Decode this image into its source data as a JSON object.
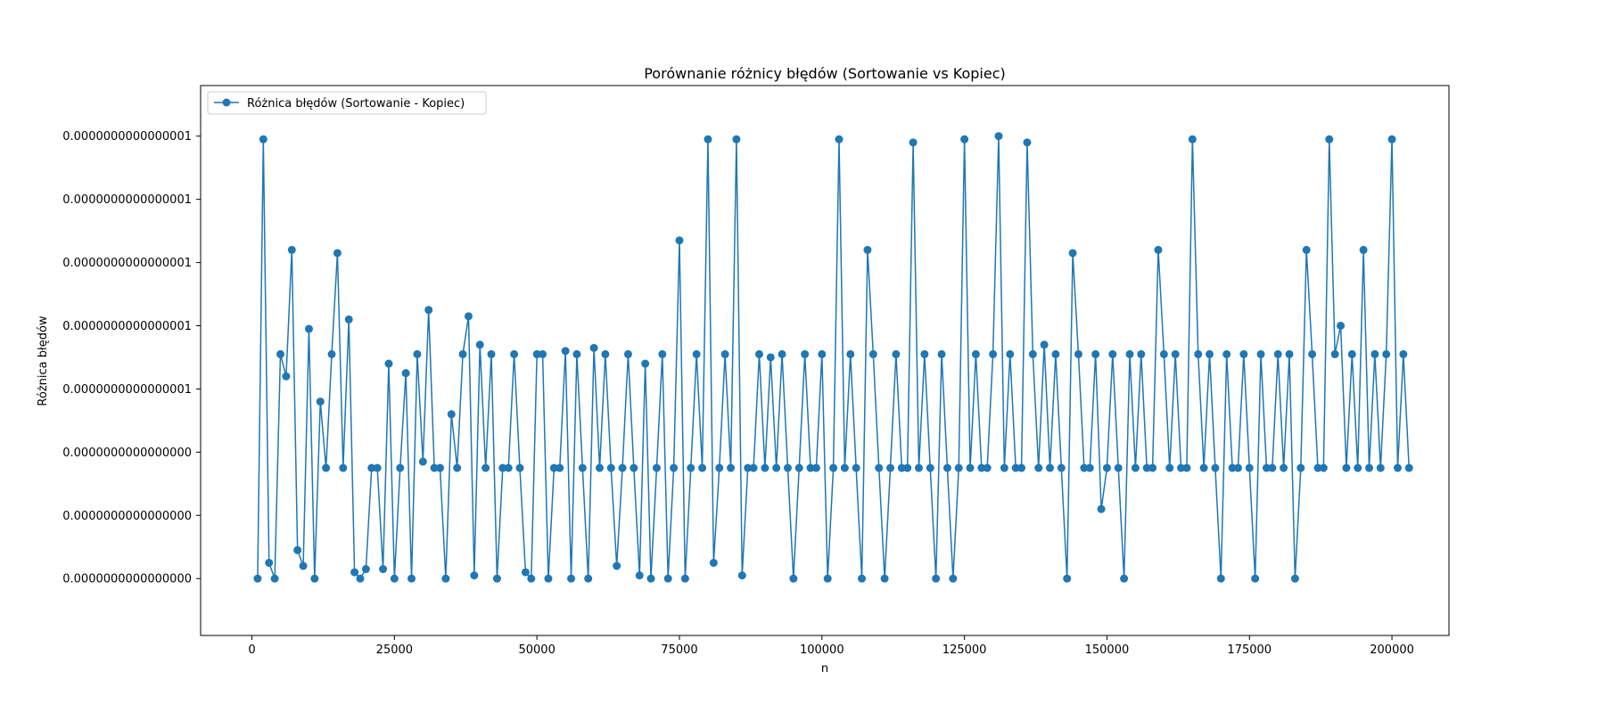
{
  "chart_data": {
    "type": "line",
    "title": "Porównanie różnicy błędów (Sortowanie vs Kopiec)",
    "xlabel": "n",
    "ylabel": "Różnica błędów",
    "xlim": [
      -9000,
      210000
    ],
    "ylim": [
      -1.8e-17,
      1.56e-16
    ],
    "x_ticks": [
      0,
      25000,
      50000,
      75000,
      100000,
      125000,
      150000,
      175000,
      200000
    ],
    "x_tick_labels": [
      "0",
      "25000",
      "50000",
      "75000",
      "100000",
      "125000",
      "150000",
      "175000",
      "200000"
    ],
    "y_ticks": [
      0,
      2e-17,
      4e-17,
      6e-17,
      8e-17,
      1e-16,
      1.2e-16,
      1.4e-16
    ],
    "y_tick_labels": [
      "0.0000000000000000",
      "0.0000000000000000",
      "0.0000000000000000",
      "0.0000000000000001",
      "0.0000000000000001",
      "0.0000000000000001",
      "0.0000000000000001",
      "0.0000000000000001"
    ],
    "grid": false,
    "legend_position": "top-left",
    "color": "#1f77b4",
    "series": [
      {
        "name": "Różnica błędów (Sortowanie - Kopiec)",
        "marker": "circle",
        "x_start": 1000,
        "x_step": 1000,
        "values": [
          0,
          1.39e-16,
          5e-18,
          0,
          7.1e-17,
          6.4e-17,
          1.04e-16,
          9e-18,
          4e-18,
          7.9e-17,
          0,
          5.6e-17,
          3.5e-17,
          7.1e-17,
          1.03e-16,
          3.5e-17,
          8.2e-17,
          2e-18,
          0,
          3e-18,
          3.5e-17,
          3.5e-17,
          3e-18,
          6.8e-17,
          0,
          3.5e-17,
          6.5e-17,
          0,
          7.1e-17,
          3.7e-17,
          8.5e-17,
          3.5e-17,
          3.5e-17,
          0,
          5.2e-17,
          3.5e-17,
          7.1e-17,
          8.3e-17,
          1e-18,
          7.4e-17,
          3.5e-17,
          7.1e-17,
          0,
          3.5e-17,
          3.5e-17,
          7.1e-17,
          3.5e-17,
          2e-18,
          0,
          7.1e-17,
          7.1e-17,
          0,
          3.5e-17,
          3.5e-17,
          7.2e-17,
          0,
          7.1e-17,
          3.5e-17,
          0,
          7.3e-17,
          3.5e-17,
          7.1e-17,
          3.5e-17,
          4e-18,
          3.5e-17,
          7.1e-17,
          3.5e-17,
          1e-18,
          6.8e-17,
          0,
          3.5e-17,
          7.1e-17,
          0,
          3.5e-17,
          1.07e-16,
          0,
          3.5e-17,
          7.1e-17,
          3.5e-17,
          1.39e-16,
          5e-18,
          3.5e-17,
          7.1e-17,
          3.5e-17,
          1.39e-16,
          1e-18,
          3.5e-17,
          3.5e-17,
          7.1e-17,
          3.5e-17,
          7e-17,
          3.5e-17,
          7.1e-17,
          3.5e-17,
          0,
          3.5e-17,
          7.1e-17,
          3.5e-17,
          3.5e-17,
          7.1e-17,
          0,
          3.5e-17,
          1.39e-16,
          3.5e-17,
          7.1e-17,
          3.5e-17,
          0,
          1.04e-16,
          7.1e-17,
          3.5e-17,
          0,
          3.5e-17,
          7.1e-17,
          3.5e-17,
          3.5e-17,
          1.38e-16,
          3.5e-17,
          7.1e-17,
          3.5e-17,
          0,
          7.1e-17,
          3.5e-17,
          0,
          3.5e-17,
          1.39e-16,
          3.5e-17,
          7.1e-17,
          3.5e-17,
          3.5e-17,
          7.1e-17,
          1.4e-16,
          3.5e-17,
          7.1e-17,
          3.5e-17,
          3.5e-17,
          1.38e-16,
          7.1e-17,
          3.5e-17,
          7.4e-17,
          3.5e-17,
          7.1e-17,
          3.5e-17,
          0,
          1.03e-16,
          7.1e-17,
          3.5e-17,
          3.5e-17,
          7.1e-17,
          2.2e-17,
          3.5e-17,
          7.1e-17,
          3.5e-17,
          0,
          7.1e-17,
          3.5e-17,
          7.1e-17,
          3.5e-17,
          3.5e-17,
          1.04e-16,
          7.1e-17,
          3.5e-17,
          7.1e-17,
          3.5e-17,
          3.5e-17,
          1.39e-16,
          7.1e-17,
          3.5e-17,
          7.1e-17,
          3.5e-17,
          0,
          7.1e-17,
          3.5e-17,
          3.5e-17,
          7.1e-17,
          3.5e-17,
          0,
          7.1e-17,
          3.5e-17,
          3.5e-17,
          7.1e-17,
          3.5e-17,
          7.1e-17,
          0,
          3.5e-17,
          1.04e-16,
          7.1e-17,
          3.5e-17,
          3.5e-17,
          1.39e-16,
          7.1e-17,
          8e-17,
          3.5e-17,
          7.1e-17,
          3.5e-17,
          1.04e-16,
          3.5e-17,
          7.1e-17,
          3.5e-17,
          7.1e-17,
          1.39e-16,
          3.5e-17,
          7.1e-17,
          3.5e-17
        ]
      }
    ]
  }
}
